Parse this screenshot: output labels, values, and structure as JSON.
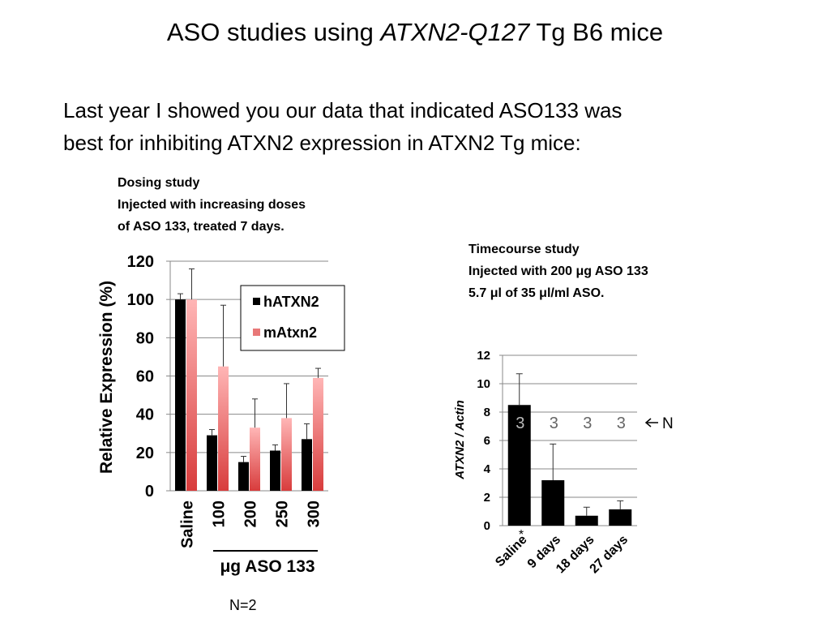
{
  "title": {
    "prefix": "ASO studies using ",
    "gene": "ATXN2-Q127",
    "suffix": " Tg B6 mice"
  },
  "intro": {
    "line1": "Last year I showed you our data that indicated ASO133 was",
    "line2": "best for inhibiting ATXN2 expression in ATXN2 Tg mice:"
  },
  "dosing_caption": {
    "line1": "Dosing study",
    "line2": "Injected with increasing doses",
    "line3": "of ASO 133, treated 7 days."
  },
  "timecourse_caption": {
    "line1": "Timecourse study",
    "line2": "Injected with 200 μg ASO 133",
    "line3": "5.7 μl of 35 μl/ml ASO."
  },
  "n_note": "N=2",
  "colors": {
    "hATXN2": "#000000",
    "mAtxn2": "#e87878"
  },
  "chart_data": [
    {
      "type": "bar",
      "ylabel": "Relative Expression (%)",
      "ylim": [
        0,
        120
      ],
      "yticks": [
        0,
        20,
        40,
        60,
        80,
        100,
        120
      ],
      "categories": [
        "Saline",
        "100",
        "200",
        "250",
        "300"
      ],
      "group_label": "μg ASO 133",
      "legend_position": "top-right",
      "grid": true,
      "series": [
        {
          "name": "hATXN2",
          "values": [
            100,
            29,
            15,
            21,
            27
          ],
          "errors": [
            3,
            3,
            3,
            3,
            8
          ]
        },
        {
          "name": "mAtxn2",
          "values": [
            100,
            65,
            33,
            38,
            59
          ],
          "errors": [
            16,
            32,
            15,
            18,
            5
          ]
        }
      ]
    },
    {
      "type": "bar",
      "ylabel": "ATXN2 / Actin",
      "ylim": [
        0,
        12
      ],
      "yticks": [
        0,
        2,
        4,
        6,
        8,
        10,
        12
      ],
      "categories": [
        "Saline",
        "9 days",
        "18 days",
        "27 days"
      ],
      "values": [
        8.5,
        3.2,
        0.7,
        1.15
      ],
      "errors": [
        2.2,
        2.55,
        0.6,
        0.6
      ],
      "n_labels": [
        "3",
        "3",
        "3",
        "3"
      ],
      "n_marker": "N",
      "significance_marker": "*",
      "grid": true
    }
  ]
}
